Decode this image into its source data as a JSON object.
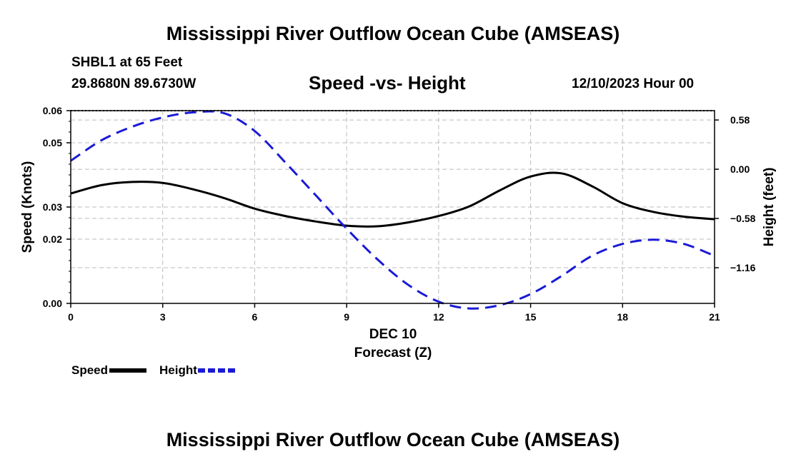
{
  "page": {
    "title_top": "Mississippi River Outflow Ocean Cube (AMSEAS)",
    "title_bottom": "Mississippi River Outflow Ocean Cube (AMSEAS)",
    "station": "SHBL1 at 65 Feet",
    "coordinates": "29.8680N  89.6730W",
    "datetime": "12/10/2023 Hour 00"
  },
  "colors": {
    "speed": "#000000",
    "height": "#1a1ad6",
    "grid": "#bbbbbb"
  },
  "chart_data": {
    "type": "line",
    "title": "Speed -vs- Height",
    "xlabel": "Forecast (Z)",
    "xlabel_date": "DEC 10",
    "ylabel": "Speed (Knots)",
    "y2label": "Height (feet)",
    "xlim": [
      0,
      21
    ],
    "ylim": [
      0,
      0.06
    ],
    "y2lim": [
      -1.58,
      0.69
    ],
    "x_ticks": [
      0,
      3,
      6,
      9,
      12,
      15,
      18,
      21
    ],
    "x_tick_labels": [
      "0",
      "3",
      "6",
      "9",
      "12",
      "15",
      "18",
      "21"
    ],
    "y_ticks": [
      0,
      0.02,
      0.03,
      0.05,
      0.06
    ],
    "y_tick_labels": [
      "0.00",
      "0.02",
      "0.03",
      "0.05",
      "0.06"
    ],
    "y2_ticks": [
      0.58,
      0.0,
      -0.58,
      -1.16
    ],
    "y2_tick_labels": [
      "0.58",
      "0.00",
      "−0.58",
      "−1.16"
    ],
    "grid": true,
    "legend_position": "bottom-left",
    "series": [
      {
        "name": "Speed",
        "axis": "left",
        "style": "solid",
        "x": [
          0,
          1,
          2,
          3,
          4,
          5,
          6,
          7,
          8,
          9,
          10,
          11,
          12,
          13,
          14,
          15,
          16,
          17,
          18,
          19,
          20,
          21
        ],
        "values": [
          0.0342,
          0.0368,
          0.0378,
          0.0375,
          0.0355,
          0.0328,
          0.0295,
          0.0272,
          0.0255,
          0.0242,
          0.024,
          0.0252,
          0.0272,
          0.0302,
          0.0352,
          0.0395,
          0.0405,
          0.0365,
          0.0312,
          0.0285,
          0.027,
          0.0262
        ]
      },
      {
        "name": "Height",
        "axis": "right",
        "style": "dashed",
        "x": [
          0,
          1,
          2,
          3,
          4,
          5,
          6,
          7,
          8,
          9,
          10,
          11,
          12,
          13,
          14,
          15,
          16,
          17,
          18,
          19,
          20,
          21
        ],
        "values": [
          0.1,
          0.34,
          0.5,
          0.61,
          0.67,
          0.66,
          0.45,
          0.08,
          -0.31,
          -0.7,
          -1.06,
          -1.36,
          -1.56,
          -1.64,
          -1.6,
          -1.47,
          -1.26,
          -1.02,
          -0.88,
          -0.83,
          -0.88,
          -1.02
        ]
      }
    ]
  }
}
